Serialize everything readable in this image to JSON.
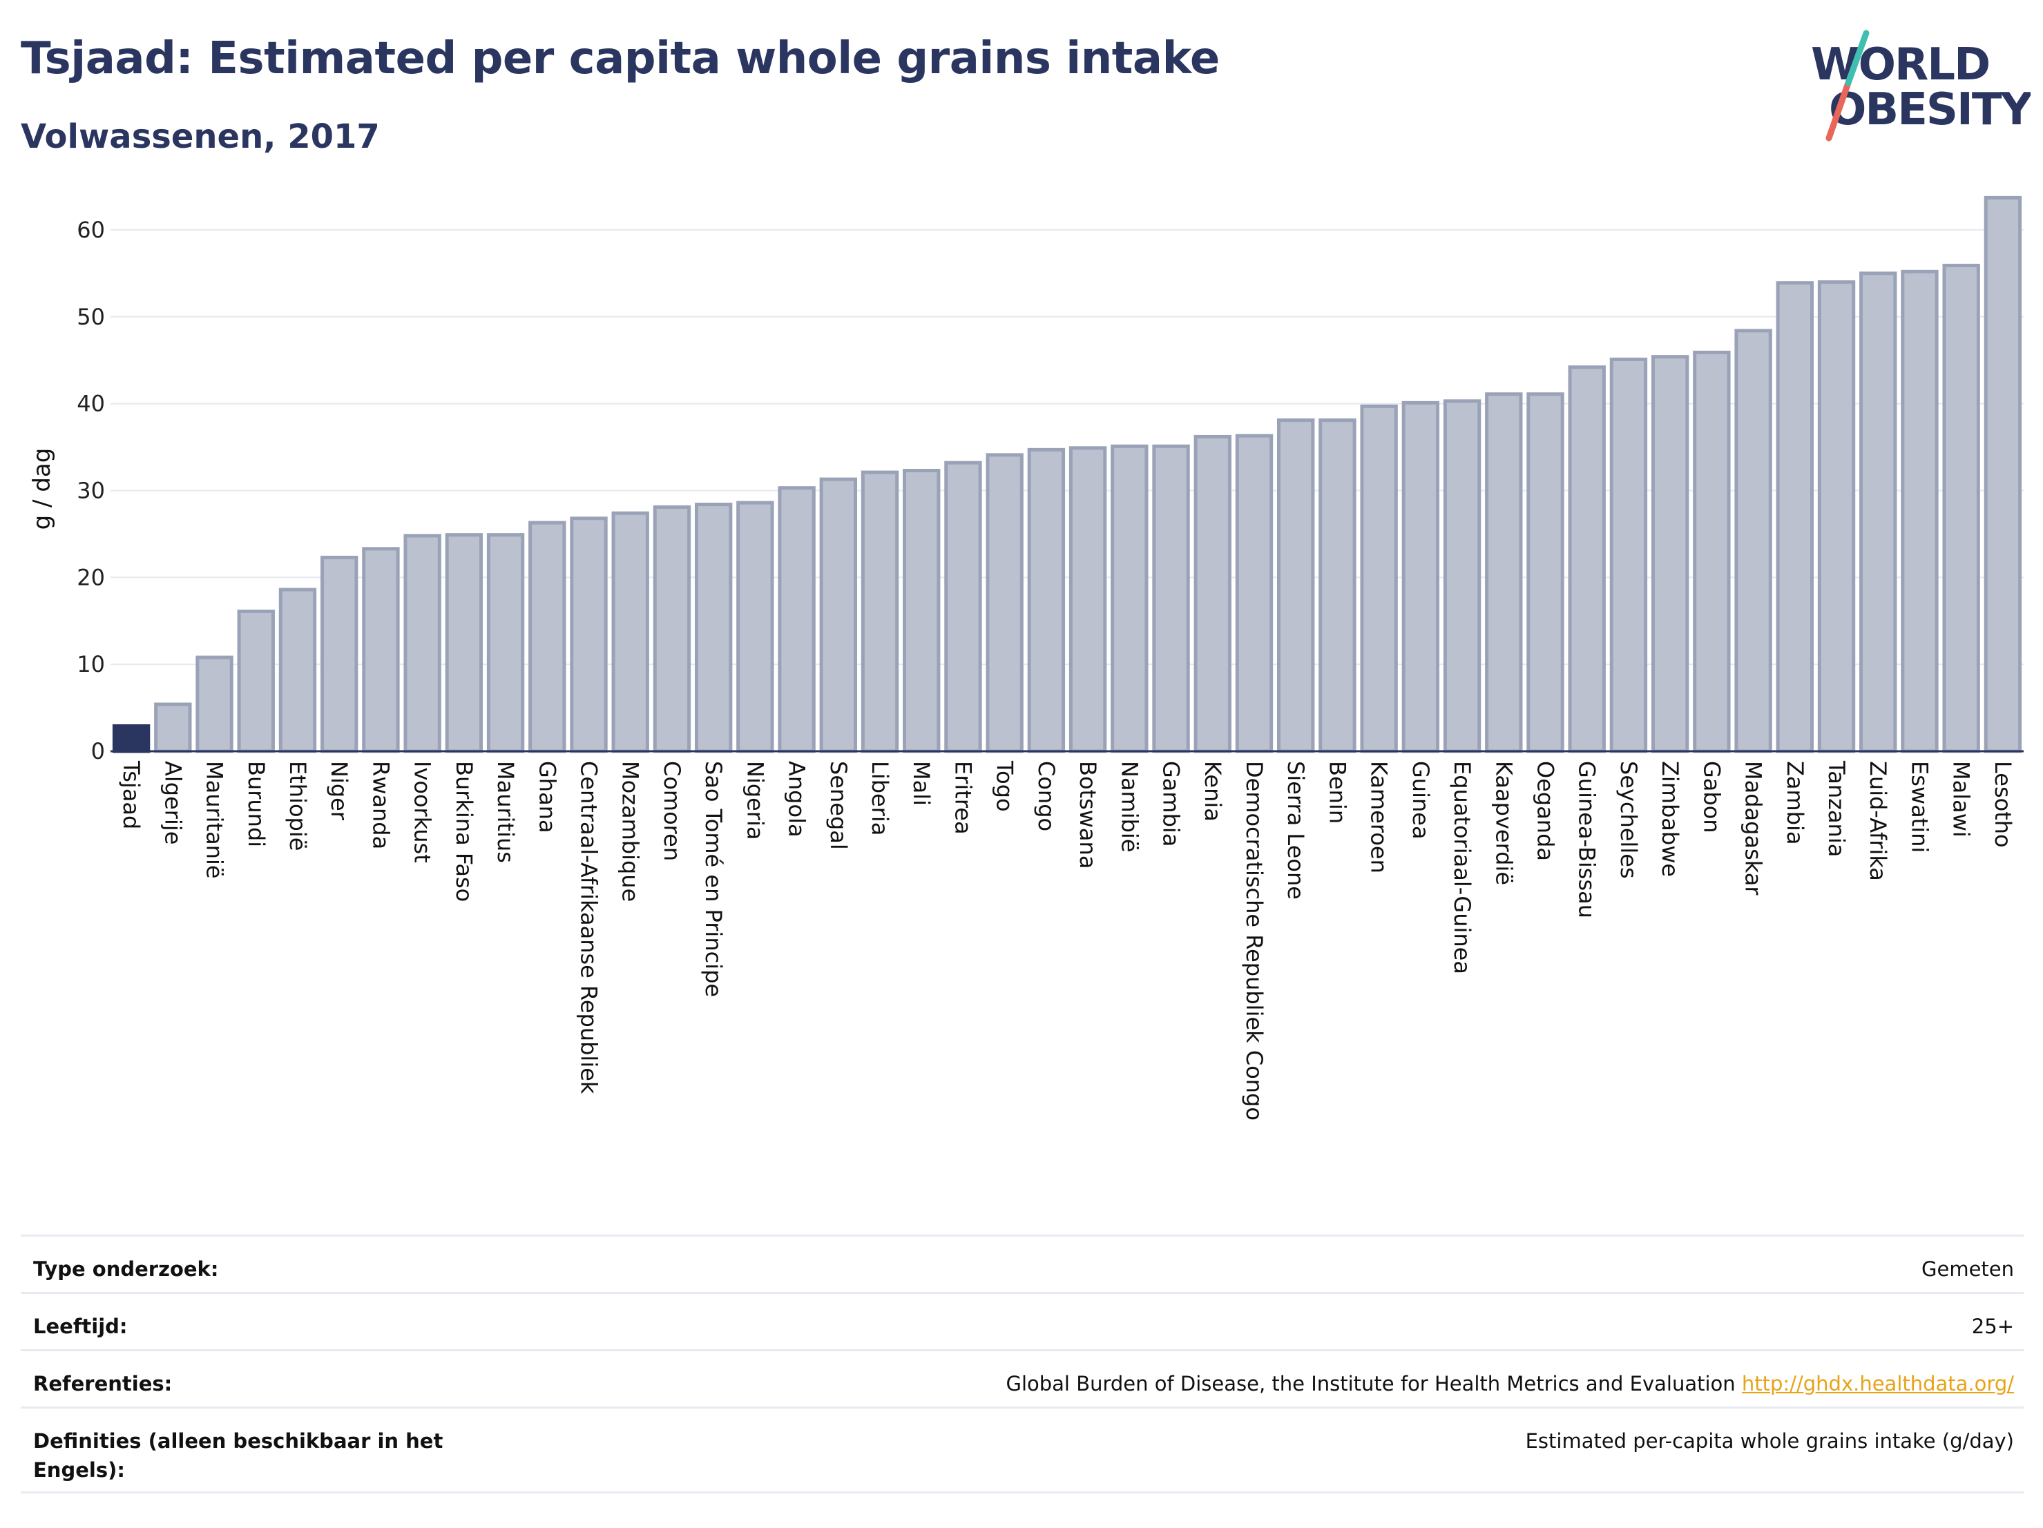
{
  "header": {
    "title": "Tsjaad: Estimated per capita whole grains intake",
    "subtitle": "Volwassenen, 2017"
  },
  "logo": {
    "line1": "WORLD",
    "line2": "OBESITY"
  },
  "colors": {
    "highlight": "#2a3560",
    "bar_fill": "#bcc1cf",
    "bar_stroke": "#9aa2b8",
    "title": "#2a3560",
    "link": "#e8a317"
  },
  "chart_data": {
    "type": "bar",
    "ylabel": "g / dag",
    "ylim": [
      0,
      65
    ],
    "yticks": [
      0,
      10,
      20,
      30,
      40,
      50,
      60
    ],
    "grid": true,
    "highlight": "Tsjaad",
    "categories": [
      "Tsjaad",
      "Algerije",
      "Mauritanië",
      "Burundi",
      "Ethiopië",
      "Niger",
      "Rwanda",
      "Ivoorkust",
      "Burkina Faso",
      "Mauritius",
      "Ghana",
      "Centraal-Afrikaanse Republiek",
      "Mozambique",
      "Comoren",
      "Sao Tomé en Principe",
      "Nigeria",
      "Angola",
      "Senegal",
      "Liberia",
      "Mali",
      "Eritrea",
      "Togo",
      "Congo",
      "Botswana",
      "Namibië",
      "Gambia",
      "Kenia",
      "Democratische Republiek Congo",
      "Sierra Leone",
      "Benin",
      "Kameroen",
      "Guinea",
      "Equatoriaal-Guinea",
      "Kaapverdië",
      "Oeganda",
      "Guinea-Bissau",
      "Seychelles",
      "Zimbabwe",
      "Gabon",
      "Madagaskar",
      "Zambia",
      "Tanzania",
      "Zuid-Afrika",
      "Eswatini",
      "Malawi",
      "Lesotho"
    ],
    "values": [
      2.9,
      5.4,
      10.8,
      16.1,
      18.6,
      22.3,
      23.3,
      24.8,
      24.9,
      24.9,
      26.3,
      26.8,
      27.4,
      28.1,
      28.4,
      28.6,
      30.3,
      31.3,
      32.1,
      32.3,
      33.2,
      34.1,
      34.7,
      34.9,
      35.1,
      35.1,
      36.2,
      36.3,
      38.1,
      38.1,
      39.7,
      40.1,
      40.3,
      41.1,
      41.1,
      44.2,
      45.1,
      45.4,
      45.9,
      48.4,
      53.9,
      54.0,
      55.0,
      55.2,
      55.9,
      63.7
    ]
  },
  "info": {
    "rows": [
      {
        "key": "Type onderzoek:",
        "value": "Gemeten"
      },
      {
        "key": "Leeftijd:",
        "value": "25+"
      },
      {
        "key": "Referenties:",
        "value": "Global Burden of Disease, the Institute for Health Metrics and Evaluation",
        "link": "http://ghdx.healthdata.org/"
      },
      {
        "key": "Definities (alleen beschikbaar in het Engels):",
        "value": "Estimated per-capita whole grains intake (g/day)"
      }
    ]
  }
}
